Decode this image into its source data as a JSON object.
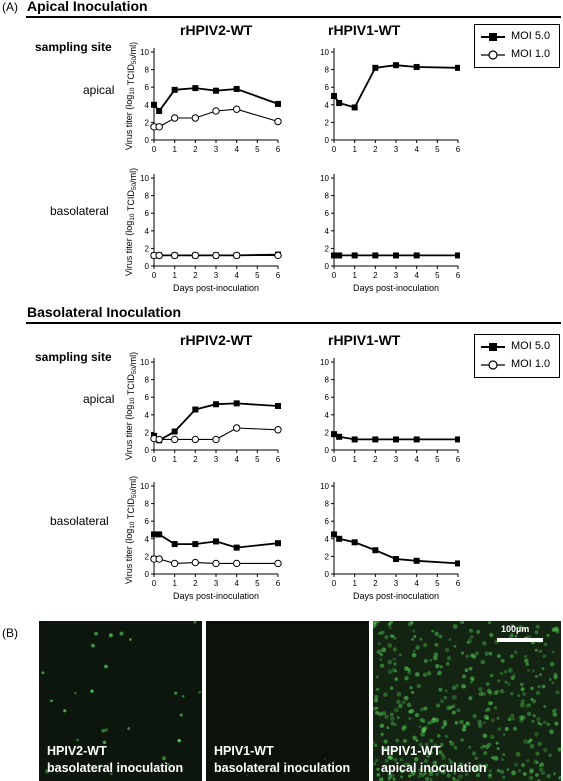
{
  "figure": {
    "panel_a_label": "(A)",
    "panel_b_label": "(B)",
    "section_1_title": "Apical Inoculation",
    "section_2_title": "Basolateral Inoculation",
    "col_1_title": "rHPIV2-WT",
    "col_2_title": "rHPIV1-WT",
    "row_head": "sampling site",
    "row_1_label": "apical",
    "row_2_label": "basolateral",
    "legend": {
      "series_1": "MOI 5.0",
      "series_2": "MOI 1.0"
    },
    "y_axis_label": "Virus titer (log10 TCID50/ml)",
    "x_axis_label": "Days post-inoculation",
    "colors": {
      "series": "#000000",
      "photo_bg": "#0c150c",
      "cell": "#5ee05e"
    }
  },
  "photos": [
    {
      "line1": "HPIV2-WT",
      "line2": "basolateral inoculation"
    },
    {
      "line1": "HPIV1-WT",
      "line2": "basolateral inoculation"
    },
    {
      "line1": "HPIV1-WT",
      "line2": "apical inoculation",
      "scale_label": "100µm"
    }
  ],
  "chart_data": [
    {
      "id": "A-HPIV2-apical",
      "type": "line",
      "x": [
        0,
        0.25,
        1,
        2,
        3,
        4,
        6
      ],
      "xlim": [
        0,
        6
      ],
      "ylim": [
        0,
        10
      ],
      "xticks": [
        0,
        1,
        2,
        3,
        4,
        5,
        6
      ],
      "yticks": [
        0,
        2,
        4,
        6,
        8,
        10
      ],
      "series": [
        {
          "name": "MOI 5.0",
          "marker": "filled-square",
          "values": [
            4.0,
            3.3,
            5.7,
            5.9,
            5.6,
            5.8,
            4.1
          ]
        },
        {
          "name": "MOI 1.0",
          "marker": "open-circle",
          "values": [
            1.5,
            1.5,
            2.5,
            2.5,
            3.3,
            3.5,
            2.1
          ]
        }
      ]
    },
    {
      "id": "A-HPIV1-apical",
      "type": "line",
      "x": [
        0,
        0.25,
        1,
        2,
        3,
        4,
        6
      ],
      "xlim": [
        0,
        6
      ],
      "ylim": [
        0,
        10
      ],
      "xticks": [
        0,
        1,
        2,
        3,
        4,
        5,
        6
      ],
      "yticks": [
        0,
        2,
        4,
        6,
        8,
        10
      ],
      "series": [
        {
          "name": "MOI 5.0",
          "marker": "filled-square",
          "values": [
            5.0,
            4.2,
            3.7,
            8.2,
            8.5,
            8.3,
            8.2
          ]
        }
      ]
    },
    {
      "id": "A-HPIV2-basolateral",
      "type": "line",
      "x": [
        0,
        0.25,
        1,
        2,
        3,
        4,
        6
      ],
      "xlim": [
        0,
        6
      ],
      "ylim": [
        0,
        10
      ],
      "xticks": [
        0,
        1,
        2,
        3,
        4,
        5,
        6
      ],
      "yticks": [
        0,
        2,
        4,
        6,
        8,
        10
      ],
      "series": [
        {
          "name": "MOI 5.0",
          "marker": "filled-square",
          "values": [
            1.2,
            1.2,
            1.2,
            1.2,
            1.2,
            1.2,
            1.3
          ]
        },
        {
          "name": "MOI 1.0",
          "marker": "open-circle",
          "values": [
            1.2,
            1.2,
            1.2,
            1.2,
            1.2,
            1.2,
            1.2
          ]
        }
      ]
    },
    {
      "id": "A-HPIV1-basolateral",
      "type": "line",
      "x": [
        0,
        0.25,
        1,
        2,
        3,
        4,
        6
      ],
      "xlim": [
        0,
        6
      ],
      "ylim": [
        0,
        10
      ],
      "xticks": [
        0,
        1,
        2,
        3,
        4,
        5,
        6
      ],
      "yticks": [
        0,
        2,
        4,
        6,
        8,
        10
      ],
      "series": [
        {
          "name": "MOI 5.0",
          "marker": "filled-square",
          "values": [
            1.2,
            1.2,
            1.2,
            1.2,
            1.2,
            1.2,
            1.2
          ]
        }
      ]
    },
    {
      "id": "B-HPIV2-apical",
      "type": "line",
      "x": [
        0,
        0.25,
        1,
        2,
        3,
        4,
        6
      ],
      "xlim": [
        0,
        6
      ],
      "ylim": [
        0,
        10
      ],
      "xticks": [
        0,
        1,
        2,
        3,
        4,
        5,
        6
      ],
      "yticks": [
        0,
        2,
        4,
        6,
        8,
        10
      ],
      "series": [
        {
          "name": "MOI 5.0",
          "marker": "filled-square",
          "values": [
            1.6,
            1.1,
            2.1,
            4.6,
            5.2,
            5.3,
            5.0
          ]
        },
        {
          "name": "MOI 1.0",
          "marker": "open-circle",
          "values": [
            1.3,
            1.2,
            1.2,
            1.2,
            1.2,
            2.5,
            2.3
          ]
        }
      ]
    },
    {
      "id": "B-HPIV1-apical",
      "type": "line",
      "x": [
        0,
        0.25,
        1,
        2,
        3,
        4,
        6
      ],
      "xlim": [
        0,
        6
      ],
      "ylim": [
        0,
        10
      ],
      "xticks": [
        0,
        1,
        2,
        3,
        4,
        5,
        6
      ],
      "yticks": [
        0,
        2,
        4,
        6,
        8,
        10
      ],
      "series": [
        {
          "name": "MOI 5.0",
          "marker": "filled-square",
          "values": [
            1.8,
            1.5,
            1.2,
            1.2,
            1.2,
            1.2,
            1.2
          ]
        }
      ]
    },
    {
      "id": "B-HPIV2-basolateral",
      "type": "line",
      "x": [
        0,
        0.25,
        1,
        2,
        3,
        4,
        6
      ],
      "xlim": [
        0,
        6
      ],
      "ylim": [
        0,
        10
      ],
      "xticks": [
        0,
        1,
        2,
        3,
        4,
        5,
        6
      ],
      "yticks": [
        0,
        2,
        4,
        6,
        8,
        10
      ],
      "series": [
        {
          "name": "MOI 5.0",
          "marker": "filled-square",
          "values": [
            4.5,
            4.5,
            3.4,
            3.4,
            3.7,
            3.0,
            3.5
          ]
        },
        {
          "name": "MOI 1.0",
          "marker": "open-circle",
          "values": [
            1.7,
            1.7,
            1.2,
            1.3,
            1.2,
            1.2,
            1.2
          ]
        }
      ]
    },
    {
      "id": "B-HPIV1-basolateral",
      "type": "line",
      "x": [
        0,
        0.25,
        1,
        2,
        3,
        4,
        6
      ],
      "xlim": [
        0,
        6
      ],
      "ylim": [
        0,
        10
      ],
      "xticks": [
        0,
        1,
        2,
        3,
        4,
        5,
        6
      ],
      "yticks": [
        0,
        2,
        4,
        6,
        8,
        10
      ],
      "series": [
        {
          "name": "MOI 5.0",
          "marker": "filled-square",
          "values": [
            4.5,
            4.0,
            3.6,
            2.7,
            1.7,
            1.5,
            1.2
          ]
        }
      ]
    }
  ]
}
